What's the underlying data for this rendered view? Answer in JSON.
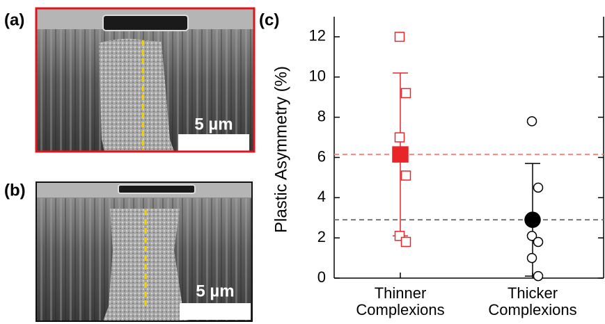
{
  "panels": [
    {
      "label": "(a)",
      "scale_bar": "5 µm"
    },
    {
      "label": "(b)",
      "scale_bar": "5 µm"
    }
  ],
  "chart_data": {
    "type": "dot",
    "panel_label": "(c)",
    "ylabel": "Plastic Asymmetry (%)",
    "categories": [
      "Thinner Complexions",
      "Thicker Complexions"
    ],
    "ylim": [
      0,
      13
    ],
    "yticks": [
      0,
      2,
      4,
      6,
      8,
      10,
      12
    ],
    "series": [
      {
        "color": "#e8262a",
        "line_color": "#f08a80",
        "marker": "square",
        "points": [
          12,
          9.2,
          7.0,
          5.1,
          2.1,
          1.8
        ],
        "mean": 6.15,
        "error": 4.05
      },
      {
        "color": "#000000",
        "line_color": "#777777",
        "marker": "circle",
        "points": [
          7.8,
          4.5,
          2.1,
          1.8,
          1.0,
          0.1
        ],
        "mean": 2.9,
        "error": 2.8
      }
    ]
  }
}
